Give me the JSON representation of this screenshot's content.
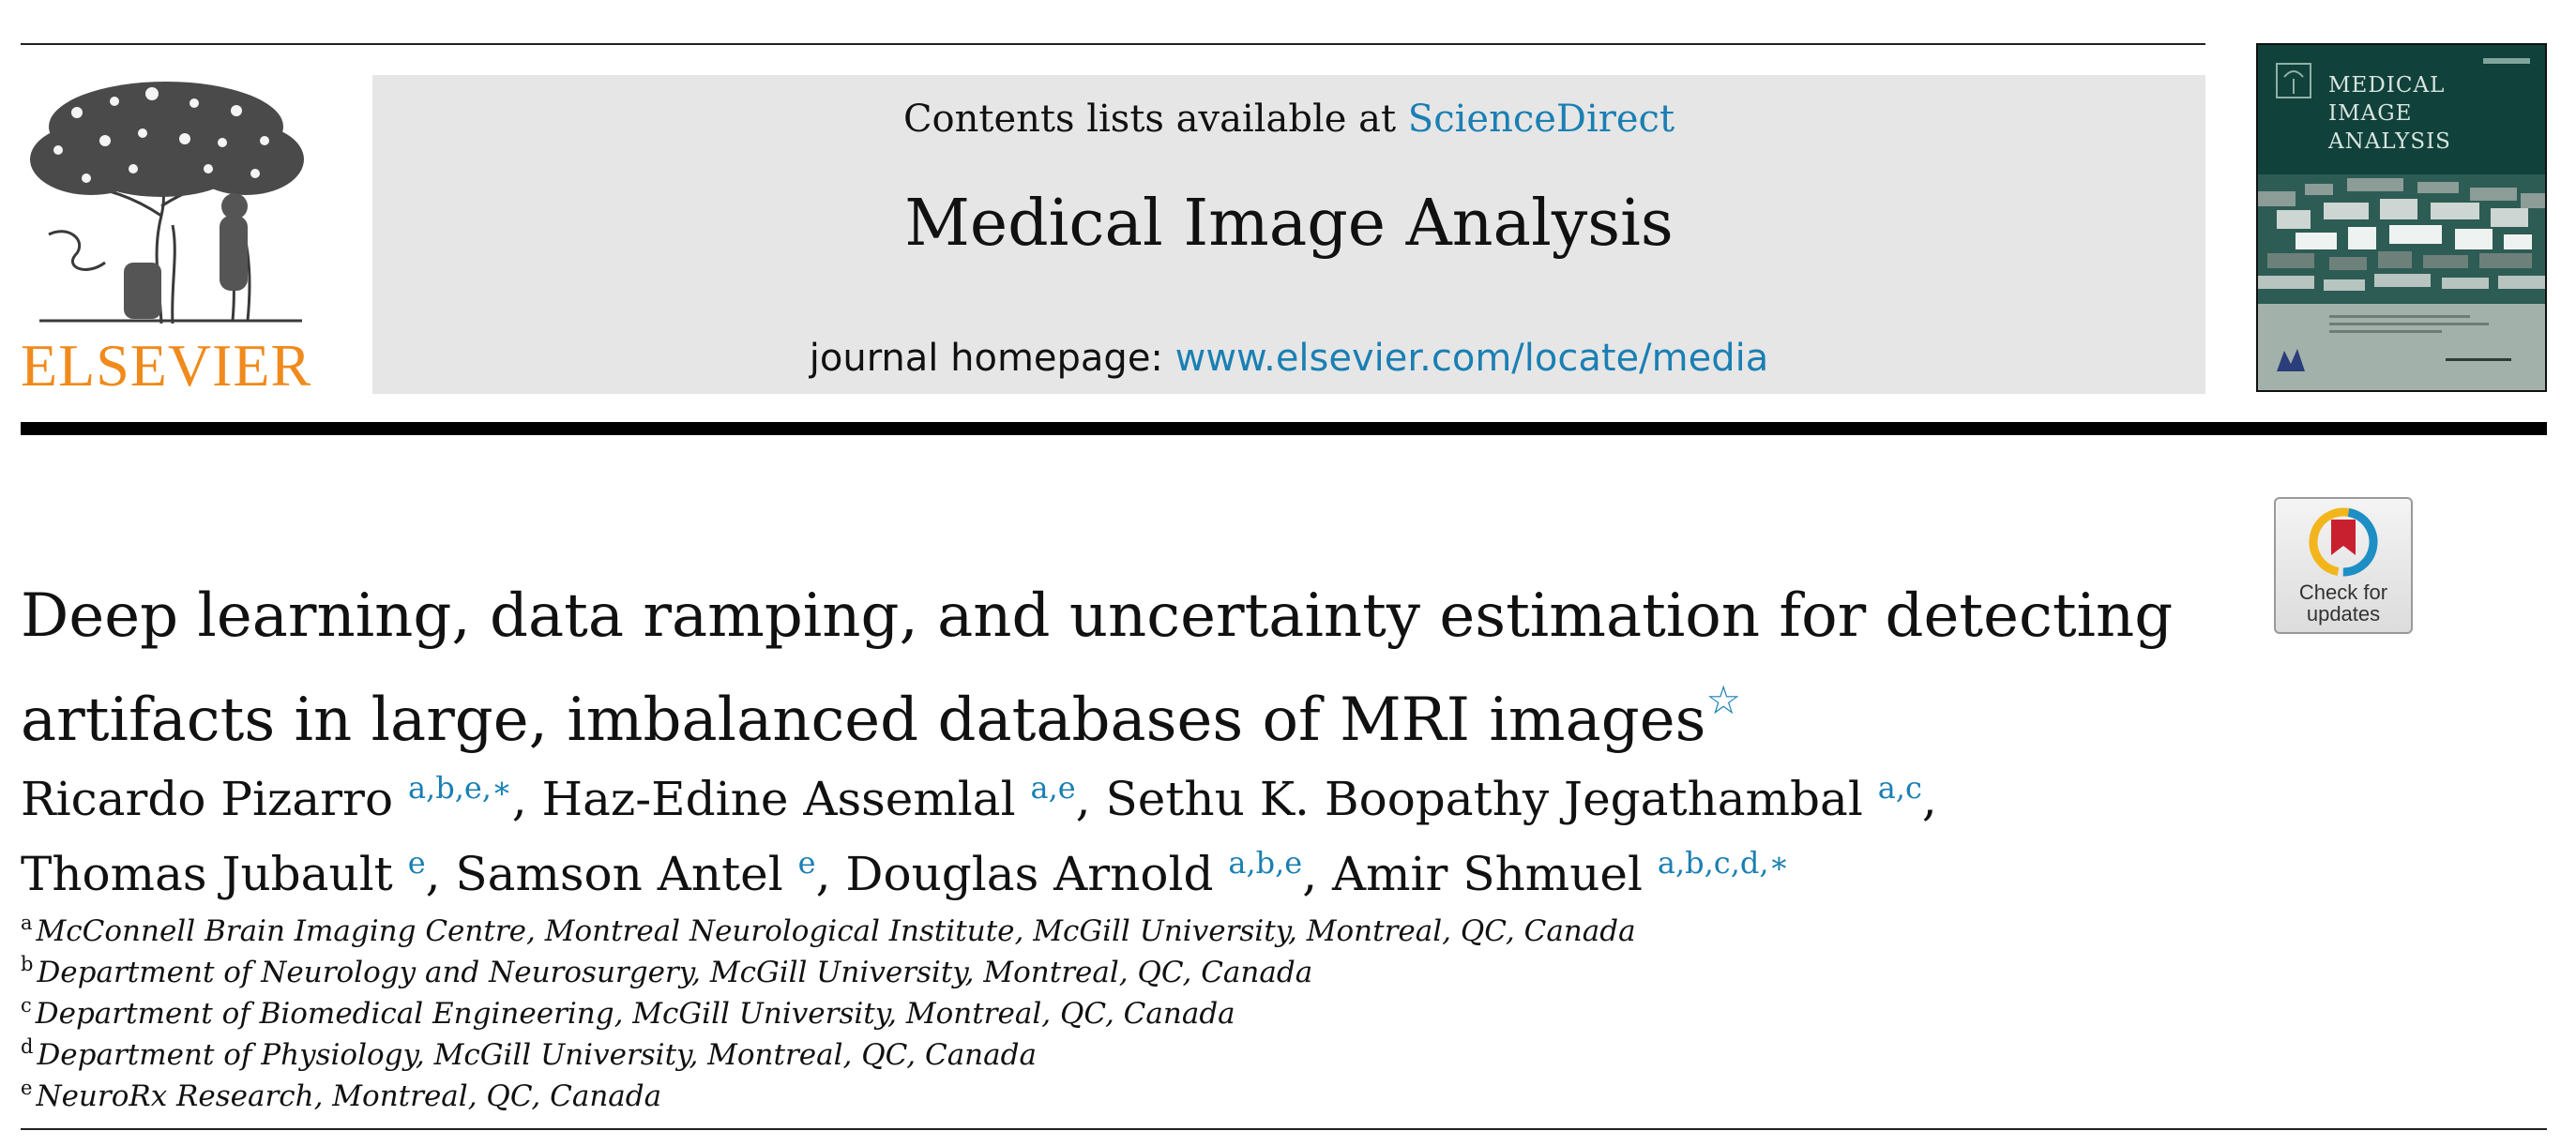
{
  "header": {
    "publisher_logo_text": "ELSEVIER",
    "contents_prefix": "Contents lists available at ",
    "contents_link": "ScienceDirect",
    "journal_name": "Medical Image Analysis",
    "homepage_prefix": "journal homepage: ",
    "homepage_url": "www.elsevier.com/locate/media",
    "cover": {
      "title_lines": [
        "MEDICAL",
        "IMAGE",
        "ANALYSIS"
      ]
    }
  },
  "check_updates": {
    "line1": "Check for",
    "line2": "updates"
  },
  "article": {
    "title_line1": "Deep learning, data ramping, and uncertainty estimation for detecting",
    "title_line2": "artifacts in large, imbalanced databases of MRI images",
    "title_footnote_mark": "☆"
  },
  "authors": [
    {
      "name": "Ricardo Pizarro",
      "marks": "a,b,e,∗",
      "sep": ", "
    },
    {
      "name": "Haz-Edine Assemlal",
      "marks": "a,e",
      "sep": ", "
    },
    {
      "name": "Sethu K. Boopathy Jegathambal",
      "marks": "a,c",
      "sep": ","
    },
    {
      "name": "Thomas Jubault",
      "marks": "e",
      "sep": ", "
    },
    {
      "name": "Samson Antel",
      "marks": "e",
      "sep": ", "
    },
    {
      "name": "Douglas Arnold",
      "marks": "a,b,e",
      "sep": ", "
    },
    {
      "name": "Amir Shmuel",
      "marks": "a,b,c,d,∗",
      "sep": ""
    }
  ],
  "affiliations": [
    {
      "mark": "a",
      "text": "McConnell Brain Imaging Centre, Montreal Neurological Institute, McGill University, Montreal, QC, Canada"
    },
    {
      "mark": "b",
      "text": "Department of Neurology and Neurosurgery, McGill University, Montreal, QC, Canada"
    },
    {
      "mark": "c",
      "text": "Department of Biomedical Engineering, McGill University, Montreal, QC, Canada"
    },
    {
      "mark": "d",
      "text": "Department of Physiology, McGill University, Montreal, QC, Canada"
    },
    {
      "mark": "e",
      "text": "NeuroRx Research, Montreal, QC, Canada"
    }
  ],
  "colors": {
    "link": "#1a7fb3",
    "publisher_orange": "#f08a1c",
    "masthead_bg": "#e6e6e6",
    "cover_green": "#10413a"
  }
}
